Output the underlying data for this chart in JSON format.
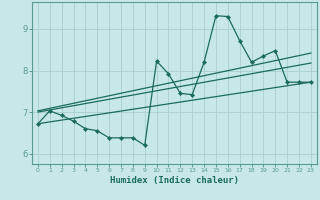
{
  "xlabel": "Humidex (Indice chaleur)",
  "bg_color": "#c8e8e8",
  "grid_color": "#b0d0d0",
  "line_color": "#1a6b5a",
  "xlim": [
    -0.5,
    23.5
  ],
  "ylim": [
    5.75,
    9.65
  ],
  "yticks": [
    6,
    7,
    8,
    9
  ],
  "xticks": [
    0,
    1,
    2,
    3,
    4,
    5,
    6,
    7,
    8,
    9,
    10,
    11,
    12,
    13,
    14,
    15,
    16,
    17,
    18,
    19,
    20,
    21,
    22,
    23
  ],
  "series1_x": [
    0,
    1,
    2,
    3,
    4,
    5,
    6,
    7,
    8,
    9,
    10,
    11,
    12,
    13,
    14,
    15,
    16,
    17,
    18,
    19,
    20,
    21,
    22,
    23
  ],
  "series1_y": [
    6.72,
    7.03,
    6.92,
    6.78,
    6.6,
    6.55,
    6.38,
    6.38,
    6.38,
    6.2,
    8.23,
    7.92,
    7.45,
    7.42,
    8.2,
    9.32,
    9.3,
    8.72,
    8.2,
    8.35,
    8.48,
    7.72,
    7.72,
    7.72
  ],
  "trend1_x": [
    0,
    23
  ],
  "trend1_y": [
    6.72,
    7.72
  ],
  "trend2_x": [
    0,
    23
  ],
  "trend2_y": [
    7.0,
    8.18
  ],
  "trend3_x": [
    0,
    23
  ],
  "trend3_y": [
    7.03,
    8.42
  ]
}
